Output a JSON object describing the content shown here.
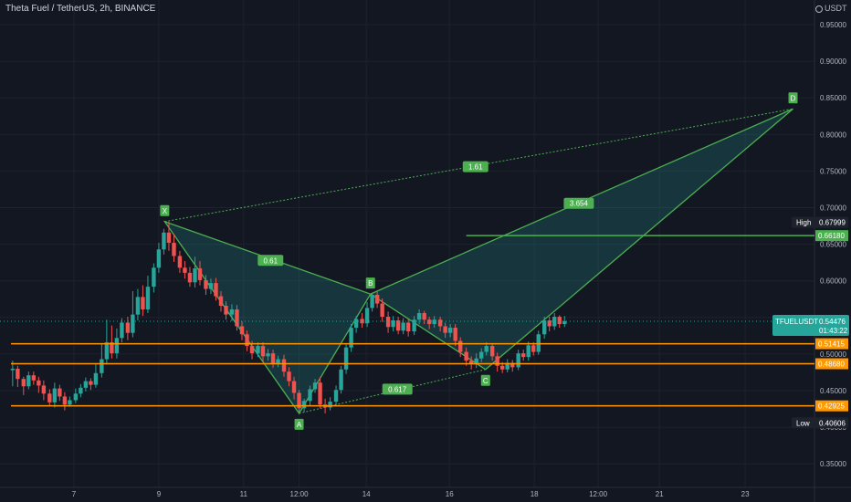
{
  "header": {
    "title": "Theta Fuel / TetherUS, 2h, BINANCE",
    "unit": "USDT"
  },
  "chart_data": {
    "type": "candlestick",
    "ylim": [
      0.325,
      0.98
    ],
    "xlim": [
      0,
      100
    ],
    "y_ticks": [
      "0.35000",
      "0.40000",
      "0.45000",
      "0.50000",
      "0.55000",
      "0.60000",
      "0.65000",
      "0.70000",
      "0.75000",
      "0.80000",
      "0.85000",
      "0.90000",
      "0.95000"
    ],
    "x_ticks": [
      {
        "label": "7",
        "t": 7.5
      },
      {
        "label": "9",
        "t": 17.6
      },
      {
        "label": "11",
        "t": 27.7
      },
      {
        "label": "12:00",
        "t": 34.3
      },
      {
        "label": "14",
        "t": 42.3
      },
      {
        "label": "16",
        "t": 52.2
      },
      {
        "label": "18",
        "t": 62.3
      },
      {
        "label": "12:00",
        "t": 69.9
      },
      {
        "label": "21",
        "t": 77.2
      },
      {
        "label": "23",
        "t": 87.4
      }
    ],
    "candles": [
      [
        0.2,
        0.478,
        0.48,
        0.456,
        0.491
      ],
      [
        0.8,
        0.48,
        0.466,
        0.455,
        0.484
      ],
      [
        1.5,
        0.466,
        0.456,
        0.444,
        0.469
      ],
      [
        2.1,
        0.456,
        0.471,
        0.452,
        0.476
      ],
      [
        2.7,
        0.471,
        0.464,
        0.458,
        0.476
      ],
      [
        3.3,
        0.464,
        0.457,
        0.447,
        0.469
      ],
      [
        3.9,
        0.457,
        0.446,
        0.437,
        0.464
      ],
      [
        4.6,
        0.446,
        0.434,
        0.429,
        0.452
      ],
      [
        5.2,
        0.434,
        0.453,
        0.427,
        0.461
      ],
      [
        5.8,
        0.453,
        0.442,
        0.436,
        0.458
      ],
      [
        6.4,
        0.442,
        0.431,
        0.423,
        0.448
      ],
      [
        7.0,
        0.431,
        0.437,
        0.428,
        0.442
      ],
      [
        7.7,
        0.437,
        0.446,
        0.433,
        0.453
      ],
      [
        8.3,
        0.446,
        0.454,
        0.441,
        0.459
      ],
      [
        8.9,
        0.454,
        0.463,
        0.449,
        0.468
      ],
      [
        9.5,
        0.463,
        0.458,
        0.451,
        0.467
      ],
      [
        10.1,
        0.458,
        0.474,
        0.454,
        0.487
      ],
      [
        10.8,
        0.474,
        0.493,
        0.468,
        0.514
      ],
      [
        11.4,
        0.493,
        0.516,
        0.486,
        0.547
      ],
      [
        12.0,
        0.516,
        0.501,
        0.494,
        0.539
      ],
      [
        12.6,
        0.501,
        0.522,
        0.494,
        0.535
      ],
      [
        13.2,
        0.522,
        0.543,
        0.516,
        0.549
      ],
      [
        13.9,
        0.543,
        0.529,
        0.519,
        0.551
      ],
      [
        14.5,
        0.529,
        0.554,
        0.523,
        0.586
      ],
      [
        15.1,
        0.554,
        0.578,
        0.546,
        0.589
      ],
      [
        15.7,
        0.578,
        0.561,
        0.552,
        0.594
      ],
      [
        16.3,
        0.561,
        0.592,
        0.556,
        0.607
      ],
      [
        17.0,
        0.592,
        0.618,
        0.584,
        0.624
      ],
      [
        17.6,
        0.618,
        0.643,
        0.611,
        0.652
      ],
      [
        18.2,
        0.643,
        0.666,
        0.636,
        0.671
      ],
      [
        18.8,
        0.666,
        0.652,
        0.641,
        0.681
      ],
      [
        19.4,
        0.652,
        0.634,
        0.626,
        0.664
      ],
      [
        20.1,
        0.634,
        0.618,
        0.611,
        0.641
      ],
      [
        20.7,
        0.618,
        0.611,
        0.603,
        0.627
      ],
      [
        21.3,
        0.611,
        0.598,
        0.592,
        0.619
      ],
      [
        21.9,
        0.598,
        0.617,
        0.591,
        0.633
      ],
      [
        22.5,
        0.617,
        0.601,
        0.594,
        0.627
      ],
      [
        23.2,
        0.601,
        0.589,
        0.581,
        0.608
      ],
      [
        23.8,
        0.589,
        0.597,
        0.582,
        0.603
      ],
      [
        24.4,
        0.597,
        0.579,
        0.573,
        0.604
      ],
      [
        25.0,
        0.579,
        0.566,
        0.558,
        0.586
      ],
      [
        25.6,
        0.566,
        0.554,
        0.547,
        0.572
      ],
      [
        26.3,
        0.554,
        0.561,
        0.545,
        0.568
      ],
      [
        26.9,
        0.561,
        0.538,
        0.532,
        0.567
      ],
      [
        27.5,
        0.538,
        0.527,
        0.519,
        0.545
      ],
      [
        28.1,
        0.527,
        0.511,
        0.504,
        0.532
      ],
      [
        28.7,
        0.511,
        0.501,
        0.493,
        0.518
      ],
      [
        29.4,
        0.501,
        0.511,
        0.496,
        0.516
      ],
      [
        30.0,
        0.511,
        0.497,
        0.489,
        0.516
      ],
      [
        30.6,
        0.497,
        0.501,
        0.491,
        0.507
      ],
      [
        31.2,
        0.501,
        0.487,
        0.481,
        0.506
      ],
      [
        31.8,
        0.487,
        0.493,
        0.482,
        0.498
      ],
      [
        32.5,
        0.493,
        0.476,
        0.469,
        0.499
      ],
      [
        33.1,
        0.476,
        0.463,
        0.456,
        0.482
      ],
      [
        33.7,
        0.463,
        0.447,
        0.438,
        0.469
      ],
      [
        34.3,
        0.447,
        0.426,
        0.418,
        0.451
      ],
      [
        34.9,
        0.426,
        0.436,
        0.421,
        0.439
      ],
      [
        35.6,
        0.436,
        0.452,
        0.429,
        0.457
      ],
      [
        36.2,
        0.452,
        0.461,
        0.447,
        0.466
      ],
      [
        36.8,
        0.461,
        0.431,
        0.426,
        0.468
      ],
      [
        37.4,
        0.431,
        0.427,
        0.419,
        0.439
      ],
      [
        38.0,
        0.427,
        0.435,
        0.423,
        0.441
      ],
      [
        38.7,
        0.435,
        0.451,
        0.43,
        0.457
      ],
      [
        39.3,
        0.451,
        0.479,
        0.446,
        0.484
      ],
      [
        39.9,
        0.479,
        0.509,
        0.473,
        0.514
      ],
      [
        40.5,
        0.509,
        0.536,
        0.503,
        0.541
      ],
      [
        41.1,
        0.536,
        0.548,
        0.529,
        0.552
      ],
      [
        41.8,
        0.548,
        0.542,
        0.536,
        0.556
      ],
      [
        42.4,
        0.542,
        0.563,
        0.537,
        0.571
      ],
      [
        43.0,
        0.563,
        0.581,
        0.558,
        0.584
      ],
      [
        43.6,
        0.581,
        0.569,
        0.563,
        0.586
      ],
      [
        44.2,
        0.569,
        0.551,
        0.544,
        0.576
      ],
      [
        44.9,
        0.551,
        0.537,
        0.529,
        0.558
      ],
      [
        45.5,
        0.537,
        0.546,
        0.531,
        0.552
      ],
      [
        46.1,
        0.546,
        0.532,
        0.527,
        0.551
      ],
      [
        46.7,
        0.532,
        0.543,
        0.527,
        0.549
      ],
      [
        47.3,
        0.543,
        0.531,
        0.524,
        0.548
      ],
      [
        48.0,
        0.531,
        0.547,
        0.526,
        0.552
      ],
      [
        48.6,
        0.547,
        0.556,
        0.541,
        0.561
      ],
      [
        49.2,
        0.556,
        0.547,
        0.541,
        0.559
      ],
      [
        49.8,
        0.547,
        0.541,
        0.534,
        0.551
      ],
      [
        50.4,
        0.541,
        0.547,
        0.536,
        0.552
      ],
      [
        51.1,
        0.547,
        0.538,
        0.531,
        0.551
      ],
      [
        51.7,
        0.538,
        0.529,
        0.522,
        0.543
      ],
      [
        52.3,
        0.529,
        0.536,
        0.523,
        0.541
      ],
      [
        52.9,
        0.536,
        0.518,
        0.511,
        0.541
      ],
      [
        53.5,
        0.518,
        0.503,
        0.496,
        0.523
      ],
      [
        54.2,
        0.503,
        0.491,
        0.484,
        0.509
      ],
      [
        54.8,
        0.491,
        0.486,
        0.479,
        0.497
      ],
      [
        55.4,
        0.486,
        0.494,
        0.481,
        0.501
      ],
      [
        56.0,
        0.494,
        0.503,
        0.489,
        0.508
      ],
      [
        56.6,
        0.503,
        0.511,
        0.498,
        0.516
      ],
      [
        57.3,
        0.511,
        0.497,
        0.491,
        0.515
      ],
      [
        57.9,
        0.497,
        0.484,
        0.476,
        0.502
      ],
      [
        58.5,
        0.484,
        0.479,
        0.474,
        0.489
      ],
      [
        59.1,
        0.479,
        0.488,
        0.475,
        0.493
      ],
      [
        59.7,
        0.488,
        0.482,
        0.476,
        0.492
      ],
      [
        60.4,
        0.482,
        0.501,
        0.478,
        0.506
      ],
      [
        61.0,
        0.501,
        0.496,
        0.491,
        0.506
      ],
      [
        61.6,
        0.496,
        0.512,
        0.491,
        0.517
      ],
      [
        62.2,
        0.512,
        0.503,
        0.498,
        0.516
      ],
      [
        62.8,
        0.503,
        0.527,
        0.499,
        0.532
      ],
      [
        63.5,
        0.527,
        0.546,
        0.521,
        0.551
      ],
      [
        64.1,
        0.546,
        0.538,
        0.531,
        0.551
      ],
      [
        64.7,
        0.538,
        0.551,
        0.533,
        0.556
      ],
      [
        65.3,
        0.551,
        0.541,
        0.536,
        0.553
      ],
      [
        65.9,
        0.541,
        0.545,
        0.537,
        0.552
      ]
    ],
    "horizontal_levels": [
      {
        "value": 0.6618,
        "label": "0.66180",
        "color": "#4caf50",
        "start_t": 54.2
      },
      {
        "value": 0.51415,
        "label": "0.51415",
        "color": "#ff9800",
        "start_t": 0
      },
      {
        "value": 0.4868,
        "label": "0.48680",
        "color": "#ff9800",
        "start_t": 0
      },
      {
        "value": 0.42925,
        "label": "0.42925",
        "color": "#ff9800",
        "start_t": 0
      }
    ],
    "price_markers": [
      {
        "name": "High",
        "value": 0.67999,
        "bg": "#1e222d",
        "label": "0.67999"
      },
      {
        "name": "Low",
        "value": 0.40606,
        "bg": "#1e222d",
        "label": "0.40606"
      },
      {
        "name": "TFUELUSDT",
        "value": 0.54476,
        "bg": "#26a69a",
        "label": "0.54476",
        "countdown": "01:43:22"
      }
    ],
    "harmonic_pattern": {
      "points": [
        {
          "label": "X",
          "t": 18.3,
          "value": 0.681
        },
        {
          "label": "A",
          "t": 34.3,
          "value": 0.419
        },
        {
          "label": "B",
          "t": 42.8,
          "value": 0.582
        },
        {
          "label": "C",
          "t": 56.5,
          "value": 0.479
        },
        {
          "label": "D",
          "t": 93.1,
          "value": 0.835
        }
      ],
      "ratios": [
        {
          "label": "0.61",
          "t": 30.9,
          "value": 0.628
        },
        {
          "label": "0.617",
          "t": 46.0,
          "value": 0.452
        },
        {
          "label": "3.654",
          "t": 67.6,
          "value": 0.706
        },
        {
          "label": "1.61",
          "t": 55.3,
          "value": 0.756
        }
      ]
    },
    "colors": {
      "up": "#26a69a",
      "down": "#ef5350",
      "pattern": "#4caf50",
      "fill": "rgba(38,166,154,0.22)",
      "grid": "#1e222d",
      "background": "#131722"
    }
  }
}
